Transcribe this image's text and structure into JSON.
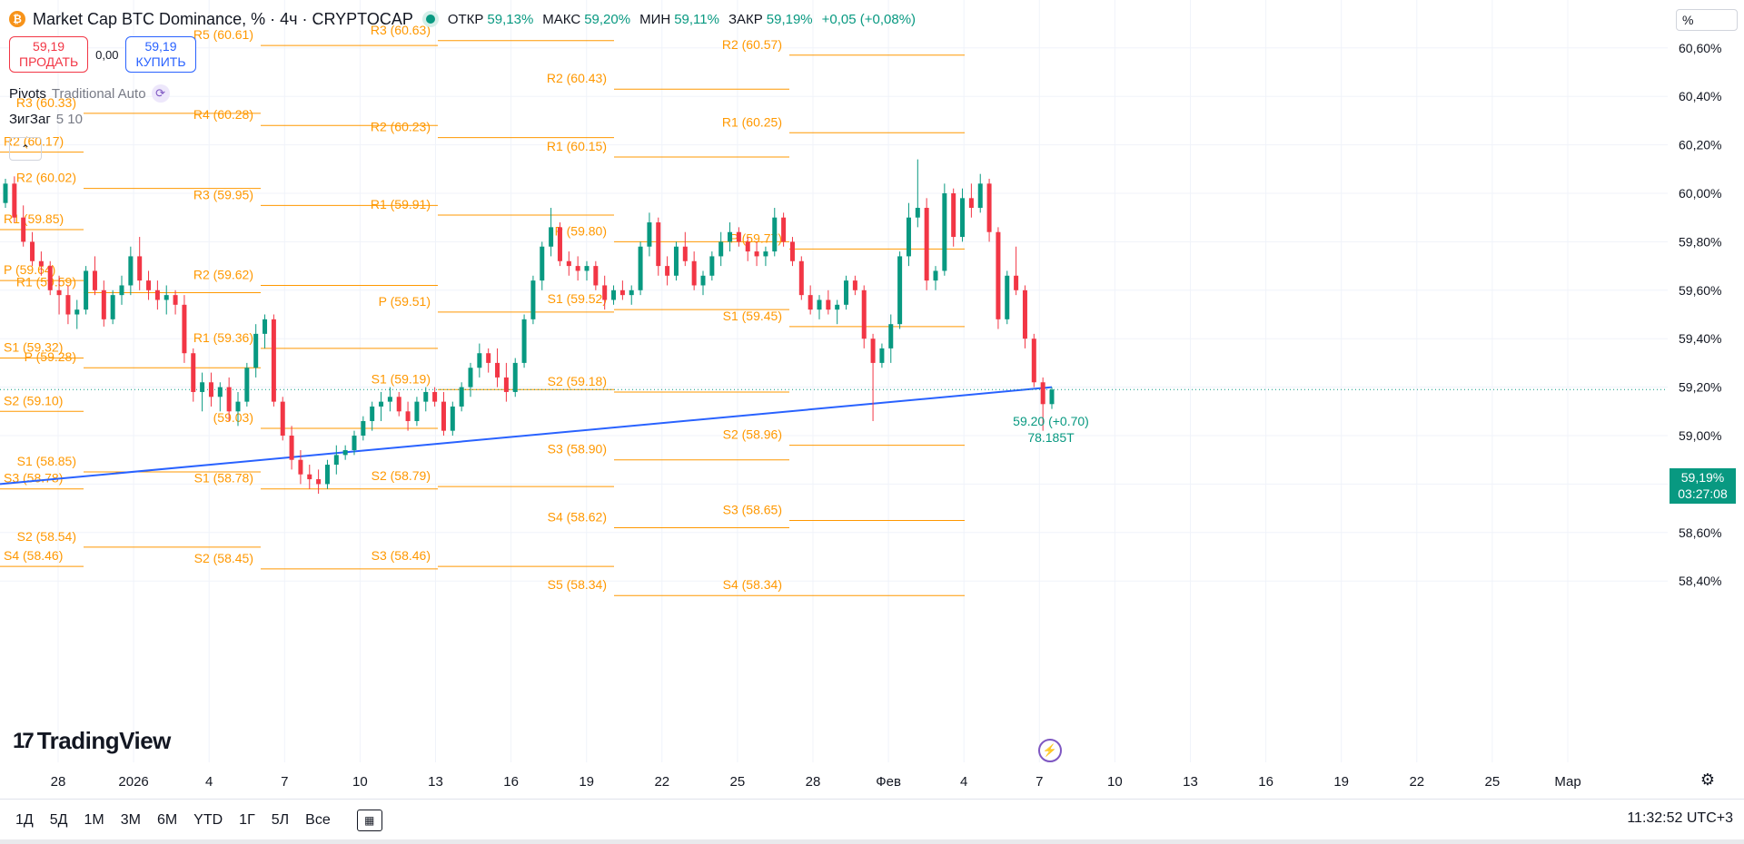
{
  "header": {
    "coin_glyph": "₿",
    "title": "Market Cap BTC Dominance, % · 4ч · CRYPTOCAP",
    "ohlc": [
      {
        "label": "ОТКР",
        "value": "59,13%"
      },
      {
        "label": "МАКС",
        "value": "59,20%"
      },
      {
        "label": "МИН",
        "value": "59,11%"
      },
      {
        "label": "ЗАКР",
        "value": "59,19%"
      }
    ],
    "change": "+0,05 (+0,08%)"
  },
  "trade": {
    "sell_price": "59,19",
    "sell_label": "ПРОДАТЬ",
    "spread": "0,00",
    "buy_price": "59,19",
    "buy_label": "КУПИТЬ"
  },
  "indicators": [
    {
      "name": "Pivots",
      "params": "Traditional Auto"
    },
    {
      "name": "ЗигЗаг",
      "params": "5 10"
    }
  ],
  "collapse_glyph": "⌃",
  "scale_mode": "%",
  "current_price": {
    "price": "59,19%",
    "countdown": "03:27:08"
  },
  "branding": {
    "mark": "17",
    "name": "TradingView"
  },
  "bolt_glyph": "⚡",
  "gear_glyph": "⚙",
  "timeframes": [
    "1Д",
    "5Д",
    "1М",
    "3М",
    "6М",
    "YTD",
    "1Г",
    "5Л",
    "Все"
  ],
  "clock": "11:32:52 UTC+3",
  "colors": {
    "up": "#089981",
    "down": "#f23645",
    "pivot": "#ff9800",
    "trend": "#2962ff",
    "grid": "#f0f3fa"
  },
  "chart_data": {
    "type": "candlestick",
    "y_axis": {
      "ticks": [
        58.4,
        58.6,
        58.8,
        59.0,
        59.2,
        59.4,
        59.6,
        59.8,
        60.0,
        60.2,
        60.4,
        60.6
      ],
      "tick_labels": [
        "58,40%",
        "58,60%",
        "58,80%",
        "59,00%",
        "59,20%",
        "59,40%",
        "59,60%",
        "59,80%",
        "60,00%",
        "60,20%",
        "60,40%",
        "60,60%"
      ],
      "ylim": [
        58.27,
        60.72
      ]
    },
    "x_axis": {
      "tick_labels": [
        "28",
        "2026",
        "4",
        "7",
        "10",
        "13",
        "16",
        "19",
        "22",
        "25",
        "28",
        "Фев",
        "4",
        "7",
        "10",
        "13",
        "16",
        "19",
        "22",
        "25",
        "Мар"
      ]
    },
    "pivot_levels": [
      {
        "label": "R2 (60.17)",
        "value": 60.17,
        "period": 0
      },
      {
        "label": "R1 (59.85)",
        "value": 59.85,
        "period": 0
      },
      {
        "label": "P (59.64)",
        "value": 59.64,
        "period": 0
      },
      {
        "label": "S1 (59.32)",
        "value": 59.32,
        "period": 0
      },
      {
        "label": "S2 (59.10)",
        "value": 59.1,
        "period": 0
      },
      {
        "label": "S3 (58.78)",
        "value": 58.78,
        "period": 0
      },
      {
        "label": "S4 (58.46)",
        "value": 58.46,
        "period": 0
      },
      {
        "label": "R3 (60.33)",
        "value": 60.33,
        "period": 1
      },
      {
        "label": "R2 (60.02)",
        "value": 60.02,
        "period": 1
      },
      {
        "label": "R1 (59.59)",
        "value": 59.59,
        "period": 1
      },
      {
        "label": "P (59.28)",
        "value": 59.28,
        "period": 1
      },
      {
        "label": "S1 (58.85)",
        "value": 58.85,
        "period": 1
      },
      {
        "label": "S2 (58.54)",
        "value": 58.54,
        "period": 1
      },
      {
        "label": "R5 (60.61)",
        "value": 60.61,
        "period": 2
      },
      {
        "label": "R4 (60.28)",
        "value": 60.28,
        "period": 2
      },
      {
        "label": "R3 (59.95)",
        "value": 59.95,
        "period": 2
      },
      {
        "label": "R2 (59.62)",
        "value": 59.62,
        "period": 2
      },
      {
        "label": "R1 (59.36)",
        "value": 59.36,
        "period": 2
      },
      {
        "label": "(59.03)",
        "value": 59.03,
        "period": 2
      },
      {
        "label": "S1 (58.78)",
        "value": 58.78,
        "period": 2
      },
      {
        "label": "S2 (58.45)",
        "value": 58.45,
        "period": 2
      },
      {
        "label": "R3 (60.63)",
        "value": 60.63,
        "period": 3
      },
      {
        "label": "R2 (60.23)",
        "value": 60.23,
        "period": 3
      },
      {
        "label": "R1 (59.91)",
        "value": 59.91,
        "period": 3
      },
      {
        "label": "P (59.51)",
        "value": 59.51,
        "period": 3
      },
      {
        "label": "S1 (59.19)",
        "value": 59.19,
        "period": 3
      },
      {
        "label": "S2 (58.79)",
        "value": 58.79,
        "period": 3
      },
      {
        "label": "S3 (58.46)",
        "value": 58.46,
        "period": 3
      },
      {
        "label": "R2 (60.43)",
        "value": 60.43,
        "period": 4
      },
      {
        "label": "R1 (60.15)",
        "value": 60.15,
        "period": 4
      },
      {
        "label": "P (59.80)",
        "value": 59.8,
        "period": 4
      },
      {
        "label": "S1 (59.52)",
        "value": 59.52,
        "period": 4
      },
      {
        "label": "S2 (59.18)",
        "value": 59.18,
        "period": 4
      },
      {
        "label": "S3 (58.90)",
        "value": 58.9,
        "period": 4
      },
      {
        "label": "S4 (58.62)",
        "value": 58.62,
        "period": 4
      },
      {
        "label": "S5 (58.34)",
        "value": 58.34,
        "period": 4
      },
      {
        "label": "R2 (60.57)",
        "value": 60.57,
        "period": 5
      },
      {
        "label": "R1 (60.25)",
        "value": 60.25,
        "period": 5
      },
      {
        "label": "P (59.77)",
        "value": 59.77,
        "period": 5
      },
      {
        "label": "S1 (59.45)",
        "value": 59.45,
        "period": 5
      },
      {
        "label": "S2 (58.96)",
        "value": 58.96,
        "period": 5
      },
      {
        "label": "S3 (58.65)",
        "value": 58.65,
        "period": 5
      },
      {
        "label": "S4 (58.34)",
        "value": 58.34,
        "period": 5
      }
    ],
    "zigzag_label": {
      "text": "59.20 (+0.70)",
      "volume": "78.185T"
    },
    "trendline": {
      "from": 58.8,
      "to": 59.2
    },
    "current_value": 59.19,
    "candles": [
      [
        59.96,
        60.06,
        59.94,
        60.04
      ],
      [
        60.04,
        60.07,
        59.88,
        59.9
      ],
      [
        59.9,
        59.95,
        59.78,
        59.8
      ],
      [
        59.8,
        59.84,
        59.7,
        59.72
      ],
      [
        59.72,
        59.76,
        59.66,
        59.7
      ],
      [
        59.7,
        59.72,
        59.58,
        59.6
      ],
      [
        59.6,
        59.66,
        59.5,
        59.58
      ],
      [
        59.58,
        59.62,
        59.46,
        59.5
      ],
      [
        59.5,
        59.56,
        59.44,
        59.52
      ],
      [
        59.52,
        59.7,
        59.5,
        59.68
      ],
      [
        59.68,
        59.74,
        59.58,
        59.6
      ],
      [
        59.6,
        59.64,
        59.45,
        59.48
      ],
      [
        59.48,
        59.6,
        59.46,
        59.58
      ],
      [
        59.58,
        59.66,
        59.54,
        59.62
      ],
      [
        59.62,
        59.78,
        59.58,
        59.74
      ],
      [
        59.74,
        59.82,
        59.6,
        59.64
      ],
      [
        59.64,
        59.68,
        59.56,
        59.6
      ],
      [
        59.6,
        59.64,
        59.52,
        59.56
      ],
      [
        59.56,
        59.62,
        59.5,
        59.58
      ],
      [
        59.58,
        59.6,
        59.5,
        59.54
      ],
      [
        59.54,
        59.58,
        59.3,
        59.34
      ],
      [
        59.34,
        59.36,
        59.14,
        59.18
      ],
      [
        59.18,
        59.26,
        59.1,
        59.22
      ],
      [
        59.22,
        59.26,
        59.12,
        59.16
      ],
      [
        59.16,
        59.22,
        59.1,
        59.2
      ],
      [
        59.2,
        59.24,
        59.06,
        59.1
      ],
      [
        59.1,
        59.18,
        59.04,
        59.14
      ],
      [
        59.14,
        59.3,
        59.12,
        59.28
      ],
      [
        59.28,
        59.46,
        59.24,
        59.42
      ],
      [
        59.42,
        59.5,
        59.36,
        59.48
      ],
      [
        59.48,
        59.5,
        59.12,
        59.14
      ],
      [
        59.14,
        59.16,
        58.98,
        59.0
      ],
      [
        59.0,
        59.04,
        58.86,
        58.9
      ],
      [
        58.9,
        58.94,
        58.8,
        58.84
      ],
      [
        58.84,
        58.88,
        58.78,
        58.82
      ],
      [
        58.82,
        58.86,
        58.76,
        58.8
      ],
      [
        58.8,
        58.9,
        58.78,
        58.88
      ],
      [
        58.88,
        58.96,
        58.84,
        58.92
      ],
      [
        58.92,
        58.96,
        58.9,
        58.94
      ],
      [
        58.94,
        59.02,
        58.92,
        59.0
      ],
      [
        59.0,
        59.08,
        58.98,
        59.06
      ],
      [
        59.06,
        59.14,
        59.02,
        59.12
      ],
      [
        59.12,
        59.18,
        59.06,
        59.14
      ],
      [
        59.14,
        59.2,
        59.1,
        59.16
      ],
      [
        59.16,
        59.18,
        59.08,
        59.1
      ],
      [
        59.1,
        59.14,
        59.02,
        59.06
      ],
      [
        59.06,
        59.16,
        59.04,
        59.14
      ],
      [
        59.14,
        59.2,
        59.1,
        59.18
      ],
      [
        59.18,
        59.2,
        59.12,
        59.14
      ],
      [
        59.14,
        59.18,
        59.0,
        59.02
      ],
      [
        59.02,
        59.14,
        59.0,
        59.12
      ],
      [
        59.12,
        59.22,
        59.1,
        59.2
      ],
      [
        59.2,
        59.3,
        59.16,
        59.28
      ],
      [
        59.28,
        59.38,
        59.24,
        59.34
      ],
      [
        59.34,
        59.36,
        59.26,
        59.3
      ],
      [
        59.3,
        59.36,
        59.2,
        59.24
      ],
      [
        59.24,
        59.3,
        59.14,
        59.18
      ],
      [
        59.18,
        59.32,
        59.16,
        59.3
      ],
      [
        59.3,
        59.5,
        59.28,
        59.48
      ],
      [
        59.48,
        59.66,
        59.46,
        59.64
      ],
      [
        59.64,
        59.8,
        59.6,
        59.78
      ],
      [
        59.78,
        59.94,
        59.74,
        59.86
      ],
      [
        59.86,
        59.88,
        59.7,
        59.72
      ],
      [
        59.72,
        59.76,
        59.66,
        59.7
      ],
      [
        59.7,
        59.74,
        59.64,
        59.68
      ],
      [
        59.68,
        59.72,
        59.64,
        59.7
      ],
      [
        59.7,
        59.72,
        59.6,
        59.62
      ],
      [
        59.62,
        59.66,
        59.52,
        59.56
      ],
      [
        59.56,
        59.62,
        59.54,
        59.6
      ],
      [
        59.6,
        59.64,
        59.56,
        59.58
      ],
      [
        59.58,
        59.62,
        59.54,
        59.6
      ],
      [
        59.6,
        59.8,
        59.58,
        59.78
      ],
      [
        59.78,
        59.92,
        59.74,
        59.88
      ],
      [
        59.88,
        59.9,
        59.66,
        59.7
      ],
      [
        59.7,
        59.74,
        59.62,
        59.66
      ],
      [
        59.66,
        59.8,
        59.64,
        59.78
      ],
      [
        59.78,
        59.84,
        59.7,
        59.72
      ],
      [
        59.72,
        59.76,
        59.6,
        59.62
      ],
      [
        59.62,
        59.68,
        59.58,
        59.66
      ],
      [
        59.66,
        59.76,
        59.64,
        59.74
      ],
      [
        59.74,
        59.84,
        59.7,
        59.8
      ],
      [
        59.8,
        59.88,
        59.76,
        59.84
      ],
      [
        59.84,
        59.86,
        59.78,
        59.8
      ],
      [
        59.8,
        59.82,
        59.72,
        59.76
      ],
      [
        59.76,
        59.8,
        59.7,
        59.74
      ],
      [
        59.74,
        59.78,
        59.7,
        59.76
      ],
      [
        59.76,
        59.94,
        59.74,
        59.9
      ],
      [
        59.9,
        59.92,
        59.78,
        59.8
      ],
      [
        59.8,
        59.82,
        59.7,
        59.72
      ],
      [
        59.72,
        59.74,
        59.56,
        59.58
      ],
      [
        59.58,
        59.62,
        59.5,
        59.52
      ],
      [
        59.52,
        59.58,
        59.48,
        59.56
      ],
      [
        59.56,
        59.6,
        59.5,
        59.52
      ],
      [
        59.52,
        59.56,
        59.46,
        59.54
      ],
      [
        59.54,
        59.66,
        59.52,
        59.64
      ],
      [
        59.64,
        59.66,
        59.58,
        59.6
      ],
      [
        59.6,
        59.62,
        59.36,
        59.4
      ],
      [
        59.4,
        59.42,
        59.06,
        59.3
      ],
      [
        59.3,
        59.38,
        59.28,
        59.36
      ],
      [
        59.36,
        59.5,
        59.3,
        59.46
      ],
      [
        59.46,
        59.76,
        59.44,
        59.74
      ],
      [
        59.74,
        59.96,
        59.7,
        59.9
      ],
      [
        59.9,
        60.14,
        59.86,
        59.94
      ],
      [
        59.94,
        59.98,
        59.6,
        59.64
      ],
      [
        59.64,
        59.7,
        59.6,
        59.68
      ],
      [
        59.68,
        60.04,
        59.66,
        60.0
      ],
      [
        60.0,
        60.02,
        59.78,
        59.82
      ],
      [
        59.82,
        60.02,
        59.8,
        59.98
      ],
      [
        59.98,
        60.04,
        59.9,
        59.94
      ],
      [
        59.94,
        60.08,
        59.92,
        60.04
      ],
      [
        60.04,
        60.06,
        59.8,
        59.84
      ],
      [
        59.84,
        59.86,
        59.44,
        59.48
      ],
      [
        59.48,
        59.68,
        59.46,
        59.66
      ],
      [
        59.66,
        59.78,
        59.58,
        59.6
      ],
      [
        59.6,
        59.62,
        59.36,
        59.4
      ],
      [
        59.4,
        59.42,
        59.2,
        59.22
      ],
      [
        59.22,
        59.24,
        59.02,
        59.13
      ],
      [
        59.13,
        59.2,
        59.11,
        59.19
      ]
    ]
  }
}
